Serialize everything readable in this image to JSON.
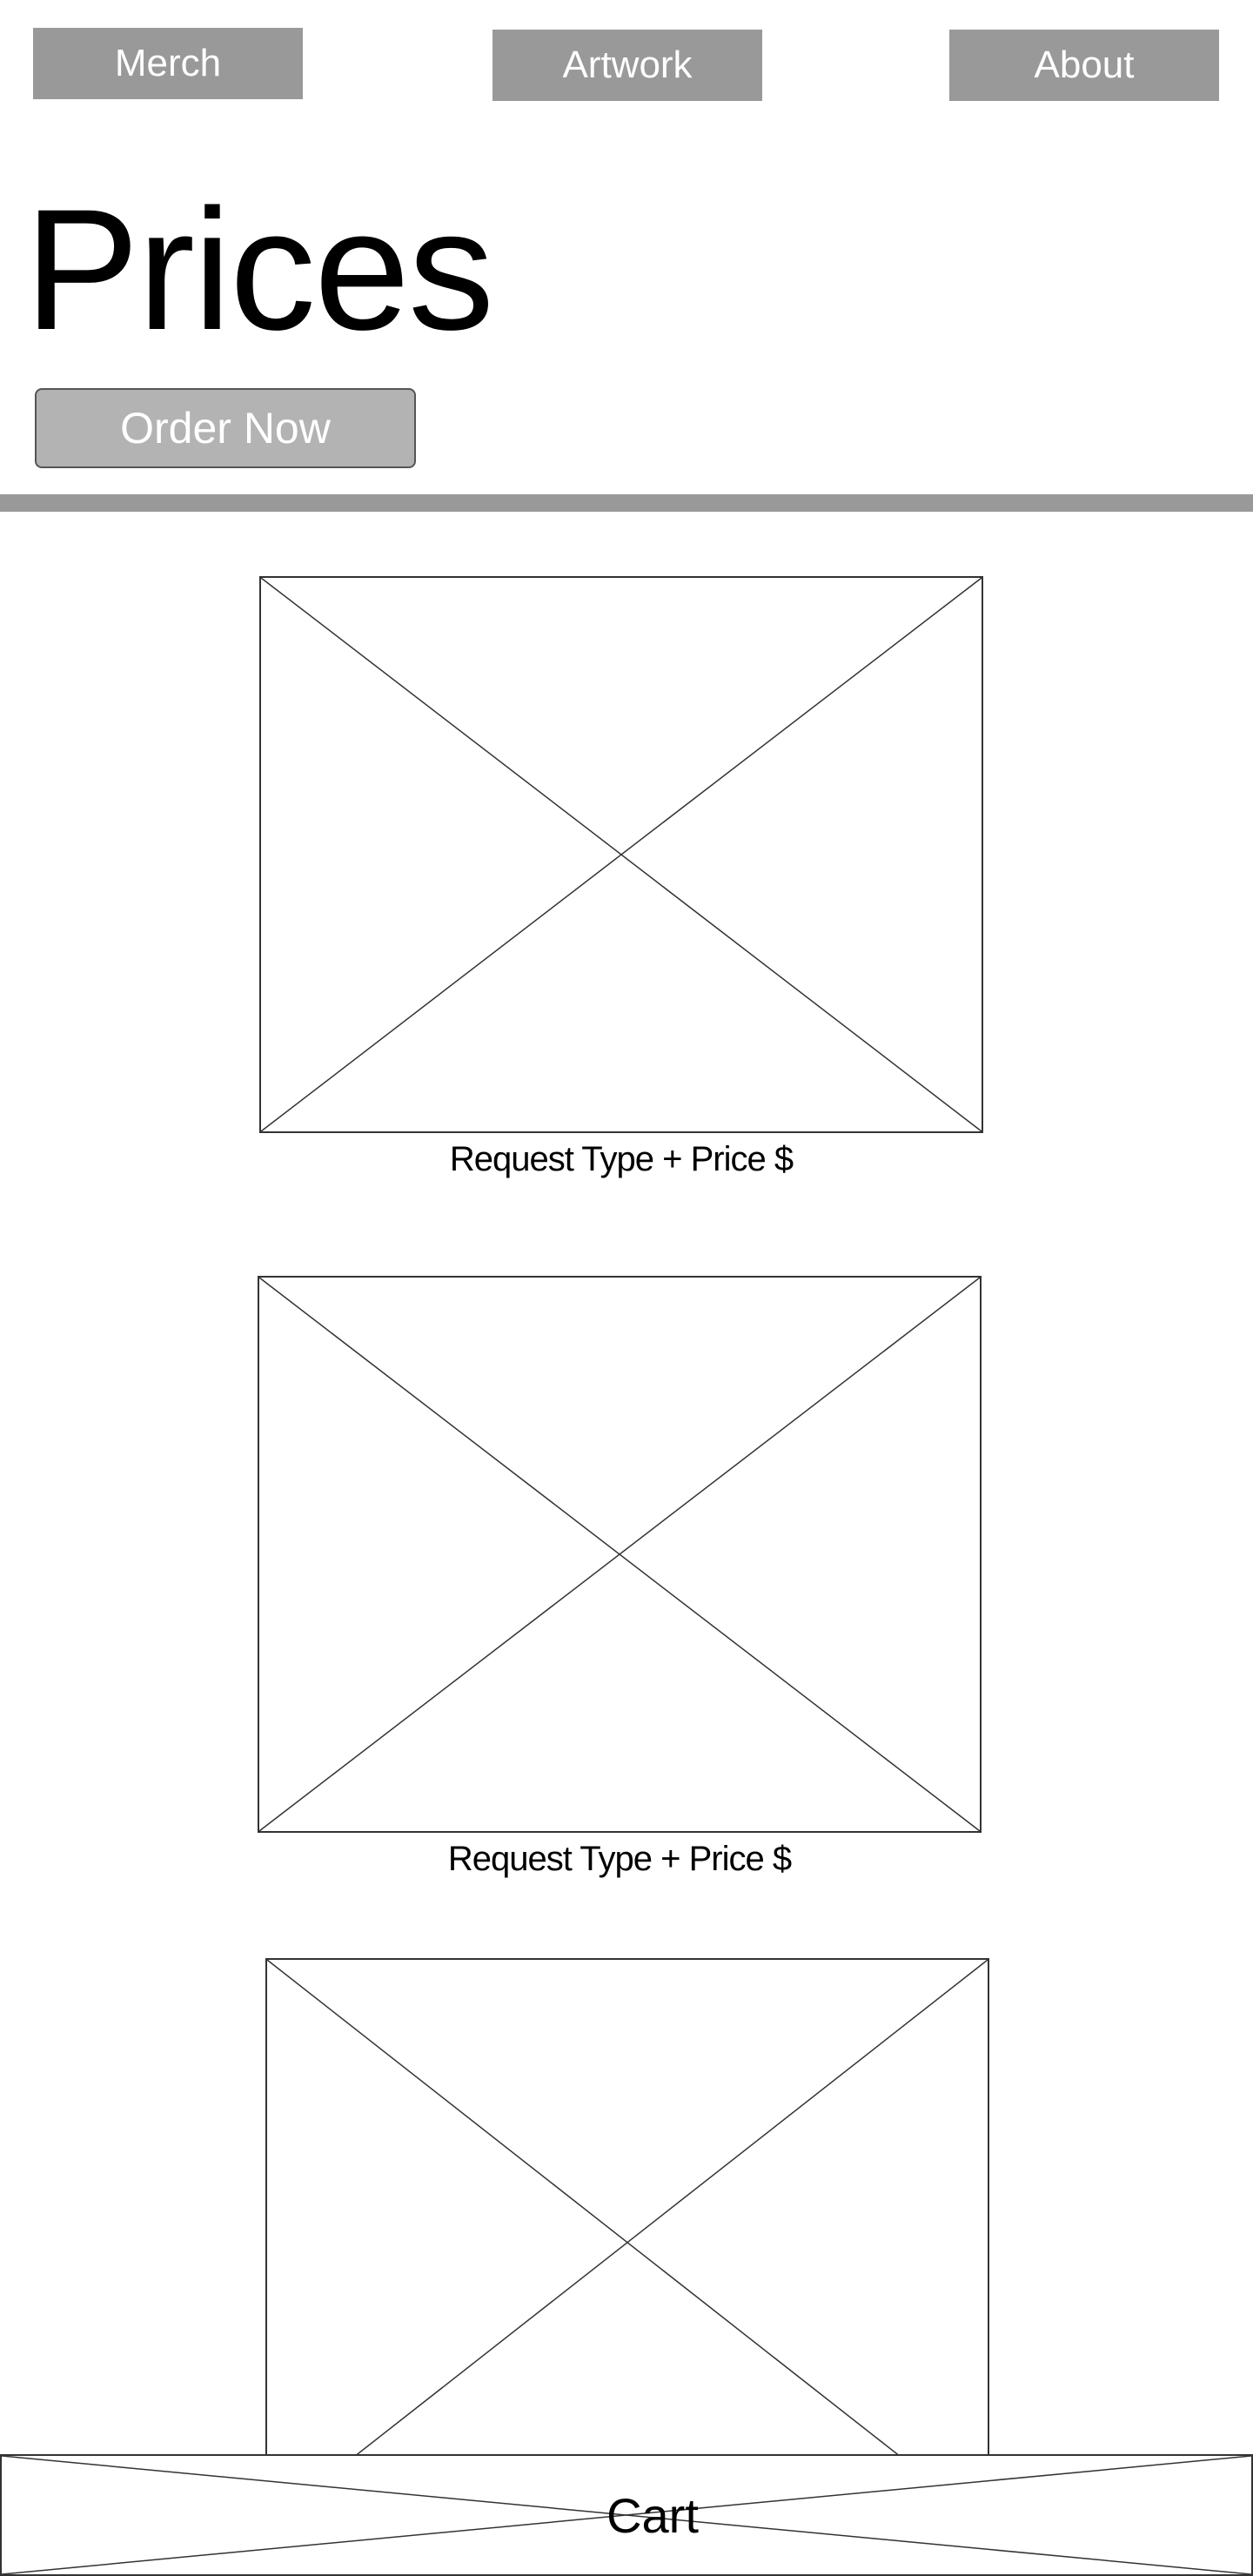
{
  "nav": {
    "merch_label": "Merch",
    "artwork_label": "Artwork",
    "about_label": "About"
  },
  "header": {
    "title": "Prices",
    "order_button_label": "Order Now"
  },
  "items": [
    {
      "caption": "Request Type + Price $"
    },
    {
      "caption": "Request Type + Price $"
    },
    {
      "caption": ""
    }
  ],
  "cart": {
    "label": "Cart"
  },
  "colors": {
    "nav_button_bg": "#999999",
    "order_button_bg": "#b3b3b3",
    "divider": "#999999",
    "wireframe_stroke": "#333333"
  }
}
